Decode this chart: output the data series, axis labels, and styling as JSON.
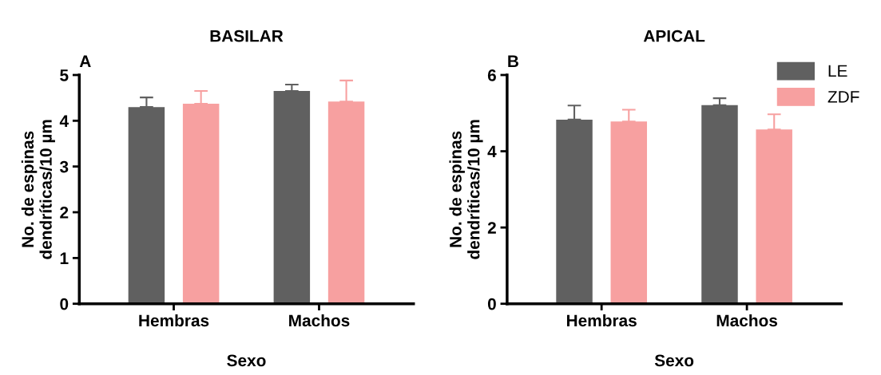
{
  "chart_data": [
    {
      "type": "bar",
      "title": "BASILAR",
      "xlabel": "Sexo",
      "ylabel": "No. de espinas\ndendríticas/10 µm",
      "annotations": [
        "A"
      ],
      "categories": [
        "Hembras",
        "Machos"
      ],
      "ylim": [
        0,
        5
      ],
      "yticks": [
        0,
        1,
        2,
        3,
        4,
        5
      ],
      "grid": false,
      "legend": false,
      "series": [
        {
          "color": "#606060",
          "values": [
            4.3,
            4.65
          ],
          "errors": [
            [
              4.3,
              4.51
            ],
            [
              4.65,
              4.79
            ]
          ]
        },
        {
          "color": "#f7a0a0",
          "values": [
            4.37,
            4.42
          ],
          "errors": [
            [
              4.37,
              4.65
            ],
            [
              4.42,
              4.88
            ]
          ]
        }
      ]
    },
    {
      "type": "bar",
      "title": "APICAL",
      "xlabel": "Sexo",
      "ylabel": "No. de espinas\ndendríticas/10 µm",
      "annotations": [
        "B"
      ],
      "categories": [
        "Hembras",
        "Machos"
      ],
      "ylim": [
        0,
        6
      ],
      "yticks": [
        0,
        2,
        4,
        6
      ],
      "grid": false,
      "legend": "top right",
      "series": [
        {
          "name": "LE",
          "color": "#606060",
          "values": [
            4.83,
            5.21
          ],
          "errors": [
            [
              4.83,
              5.2
            ],
            [
              5.21,
              5.39
            ]
          ]
        },
        {
          "name": "ZDF",
          "color": "#f7a0a0",
          "values": [
            4.78,
            4.57
          ],
          "errors": [
            [
              4.78,
              5.09
            ],
            [
              4.57,
              4.97
            ]
          ]
        }
      ]
    }
  ]
}
